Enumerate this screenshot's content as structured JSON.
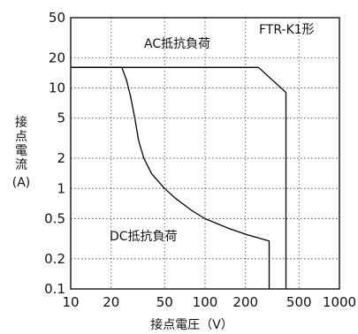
{
  "chart_data": {
    "type": "line",
    "title": "",
    "xlabel": "接点電圧（V）",
    "ylabel_lines": [
      "接",
      "点",
      "電",
      "流",
      "(A)"
    ],
    "x_scale": "log",
    "y_scale": "log",
    "xlim": [
      10,
      1000
    ],
    "ylim": [
      0.1,
      50
    ],
    "x_ticks": [
      10,
      20,
      50,
      100,
      200,
      500,
      1000
    ],
    "x_tick_labels": [
      "10",
      "20",
      "50",
      "100",
      "200",
      "500",
      "1000"
    ],
    "y_ticks": [
      0.1,
      0.2,
      0.5,
      1,
      2,
      5,
      10,
      20,
      50
    ],
    "y_tick_labels": [
      "0.1",
      "0.2",
      "0.5",
      "1",
      "2",
      "5",
      "10",
      "20",
      "50"
    ],
    "grid": true,
    "grid_style": "dotted",
    "model_label": "FTR-K1形",
    "series": [
      {
        "name": "AC抵抗負荷",
        "x": [
          10,
          250,
          400,
          400
        ],
        "y": [
          16,
          16,
          9,
          0.1
        ]
      },
      {
        "name": "DC抵抗負荷",
        "x": [
          10,
          24,
          26,
          28,
          30,
          32,
          35,
          40,
          50,
          60,
          80,
          100,
          150,
          200,
          300,
          300
        ],
        "y": [
          16,
          16,
          12,
          8,
          5,
          3,
          2,
          1.4,
          1,
          0.8,
          0.6,
          0.5,
          0.4,
          0.35,
          0.3,
          0.1
        ]
      }
    ],
    "colors": {
      "line": "#000000",
      "grid": "#555555",
      "frame": "#000000"
    }
  }
}
